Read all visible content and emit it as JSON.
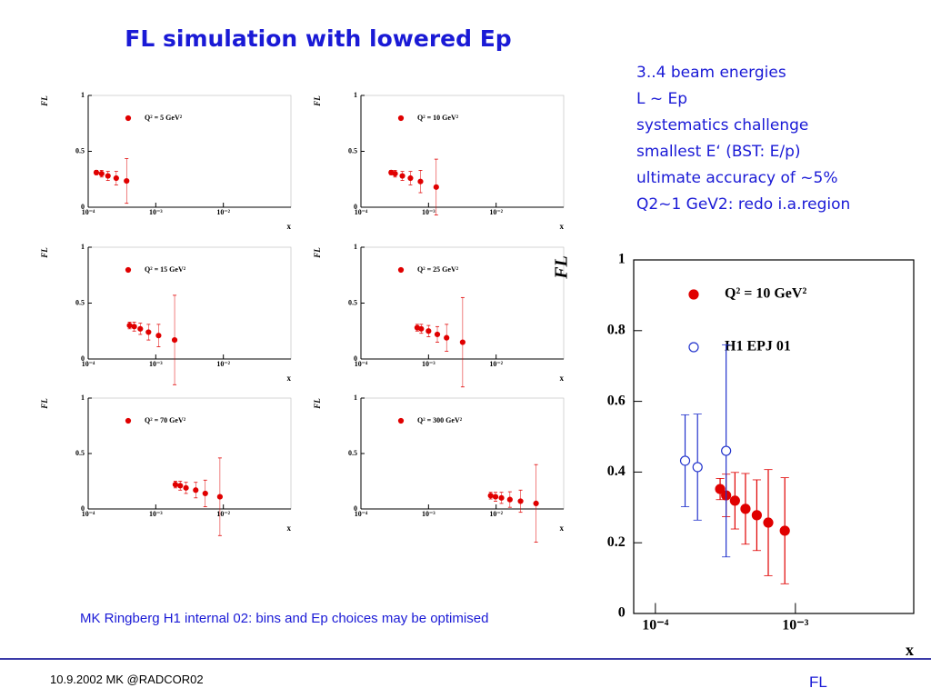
{
  "title": "FL simulation with lowered Ep",
  "notes": [
    "3..4 beam energies",
    "L ~ Ep",
    "systematics challenge",
    "smallest E‘ (BST: E/p)",
    "ultimate accuracy of ~5%",
    "Q2~1 GeV2: redo i.a.region"
  ],
  "caption": "MK Ringberg H1 internal 02: bins and Ep choices may be optimised",
  "footer": {
    "left": "10.9.2002 MK @RADCOR02",
    "right": "FL"
  },
  "chart_data": [
    {
      "type": "scatter",
      "x_label": "x",
      "y_label": "FL",
      "xscale": "log",
      "xlim": [
        0.0001,
        0.1
      ],
      "ylim": [
        0,
        1
      ],
      "xticks": [
        {
          "value": 0.0001,
          "label": "10⁻⁴"
        },
        {
          "value": 0.001,
          "label": "10⁻³"
        },
        {
          "value": 0.01,
          "label": "10⁻²"
        }
      ],
      "yticks": [
        0,
        0.5,
        1
      ],
      "series": [
        {
          "name": "Q² = 5 GeV²",
          "color": "#e00000",
          "marker": "filled",
          "x": [
            0.000132,
            0.000158,
            0.000196,
            0.00026,
            0.00037
          ],
          "values": [
            0.31,
            0.3,
            0.28,
            0.26,
            0.235
          ],
          "errors": [
            0.02,
            0.03,
            0.04,
            0.06,
            0.2
          ]
        }
      ]
    },
    {
      "type": "scatter",
      "x_label": "x",
      "y_label": "FL",
      "xscale": "log",
      "xlim": [
        0.0001,
        0.1
      ],
      "ylim": [
        0,
        1
      ],
      "xticks": [
        {
          "value": 0.0001,
          "label": "10⁻⁴"
        },
        {
          "value": 0.001,
          "label": "10⁻³"
        },
        {
          "value": 0.01,
          "label": "10⁻²"
        }
      ],
      "yticks": [
        0,
        0.5,
        1
      ],
      "series": [
        {
          "name": "Q² = 10 GeV²",
          "color": "#e00000",
          "marker": "filled",
          "x": [
            0.00028,
            0.00032,
            0.00041,
            0.00054,
            0.00076,
            0.0013
          ],
          "values": [
            0.31,
            0.3,
            0.28,
            0.26,
            0.23,
            0.18
          ],
          "errors": [
            0.02,
            0.03,
            0.04,
            0.06,
            0.1,
            0.25
          ]
        }
      ]
    },
    {
      "type": "scatter",
      "x_label": "x",
      "y_label": "FL",
      "xscale": "log",
      "xlim": [
        0.0001,
        0.1
      ],
      "ylim": [
        0,
        1
      ],
      "xticks": [
        {
          "value": 0.0001,
          "label": "10⁻⁴"
        },
        {
          "value": 0.001,
          "label": "10⁻³"
        },
        {
          "value": 0.01,
          "label": "10⁻²"
        }
      ],
      "yticks": [
        0,
        0.5,
        1
      ],
      "series": [
        {
          "name": "Q² = 15 GeV²",
          "color": "#e00000",
          "marker": "filled",
          "x": [
            0.00041,
            0.00048,
            0.00059,
            0.00078,
            0.0011,
            0.0019
          ],
          "values": [
            0.3,
            0.29,
            0.27,
            0.24,
            0.21,
            0.17
          ],
          "errors": [
            0.03,
            0.04,
            0.05,
            0.07,
            0.1,
            0.4
          ]
        }
      ]
    },
    {
      "type": "scatter",
      "x_label": "x",
      "y_label": "FL",
      "xscale": "log",
      "xlim": [
        0.0001,
        0.1
      ],
      "ylim": [
        0,
        1
      ],
      "xticks": [
        {
          "value": 0.0001,
          "label": "10⁻⁴"
        },
        {
          "value": 0.001,
          "label": "10⁻³"
        },
        {
          "value": 0.01,
          "label": "10⁻²"
        }
      ],
      "yticks": [
        0,
        0.5,
        1
      ],
      "series": [
        {
          "name": "Q² = 25 GeV²",
          "color": "#e00000",
          "marker": "filled",
          "x": [
            0.00068,
            0.00078,
            0.001,
            0.00135,
            0.00185,
            0.0032
          ],
          "values": [
            0.28,
            0.27,
            0.25,
            0.22,
            0.19,
            0.15
          ],
          "errors": [
            0.03,
            0.04,
            0.05,
            0.07,
            0.12,
            0.4
          ]
        }
      ]
    },
    {
      "type": "scatter",
      "x_label": "x",
      "y_label": "FL",
      "xscale": "log",
      "xlim": [
        0.0001,
        0.1
      ],
      "ylim": [
        0,
        1
      ],
      "xticks": [
        {
          "value": 0.0001,
          "label": "10⁻⁴"
        },
        {
          "value": 0.001,
          "label": "10⁻³"
        },
        {
          "value": 0.01,
          "label": "10⁻²"
        }
      ],
      "yticks": [
        0,
        0.5,
        1
      ],
      "series": [
        {
          "name": "Q² = 70 GeV²",
          "color": "#e00000",
          "marker": "filled",
          "x": [
            0.00195,
            0.0023,
            0.0028,
            0.0039,
            0.0054,
            0.0089
          ],
          "values": [
            0.22,
            0.21,
            0.19,
            0.17,
            0.14,
            0.11
          ],
          "errors": [
            0.03,
            0.04,
            0.05,
            0.07,
            0.12,
            0.35
          ]
        }
      ]
    },
    {
      "type": "scatter",
      "x_label": "x",
      "y_label": "FL",
      "xscale": "log",
      "xlim": [
        0.0001,
        0.1
      ],
      "ylim": [
        0,
        1
      ],
      "xticks": [
        {
          "value": 0.0001,
          "label": "10⁻⁴"
        },
        {
          "value": 0.001,
          "label": "10⁻³"
        },
        {
          "value": 0.01,
          "label": "10⁻²"
        }
      ],
      "yticks": [
        0,
        0.5,
        1
      ],
      "series": [
        {
          "name": "Q² = 300 GeV²",
          "color": "#e00000",
          "marker": "filled",
          "x": [
            0.0083,
            0.0098,
            0.012,
            0.016,
            0.023,
            0.039
          ],
          "values": [
            0.12,
            0.11,
            0.1,
            0.085,
            0.07,
            0.05
          ],
          "errors": [
            0.03,
            0.04,
            0.05,
            0.07,
            0.1,
            0.35
          ]
        }
      ]
    },
    {
      "type": "scatter",
      "x_label": "x",
      "y_label": "FL",
      "xscale": "log",
      "xlim": [
        7e-05,
        0.007
      ],
      "ylim": [
        0,
        1
      ],
      "xticks": [
        {
          "value": 0.0001,
          "label": "10⁻⁴"
        },
        {
          "value": 0.001,
          "label": "10⁻³"
        }
      ],
      "yticks": [
        0,
        0.2,
        0.4,
        0.6,
        0.8,
        1
      ],
      "series": [
        {
          "name": "Q² = 10 GeV²",
          "color": "#e00000",
          "marker": "filled",
          "x": [
            0.00029,
            0.00032,
            0.00037,
            0.00044,
            0.00053,
            0.00064,
            0.00084
          ],
          "values": [
            0.352,
            0.334,
            0.319,
            0.296,
            0.278,
            0.257,
            0.234
          ],
          "errors": [
            0.03,
            0.06,
            0.08,
            0.1,
            0.1,
            0.15,
            0.15
          ]
        },
        {
          "name": "H1 EPJ 01",
          "color": "#2233cc",
          "marker": "open",
          "x": [
            0.000163,
            0.0002,
            0.00032
          ],
          "values": [
            0.432,
            0.414,
            0.46
          ],
          "errors": [
            0.13,
            0.15,
            0.3
          ]
        }
      ]
    }
  ]
}
